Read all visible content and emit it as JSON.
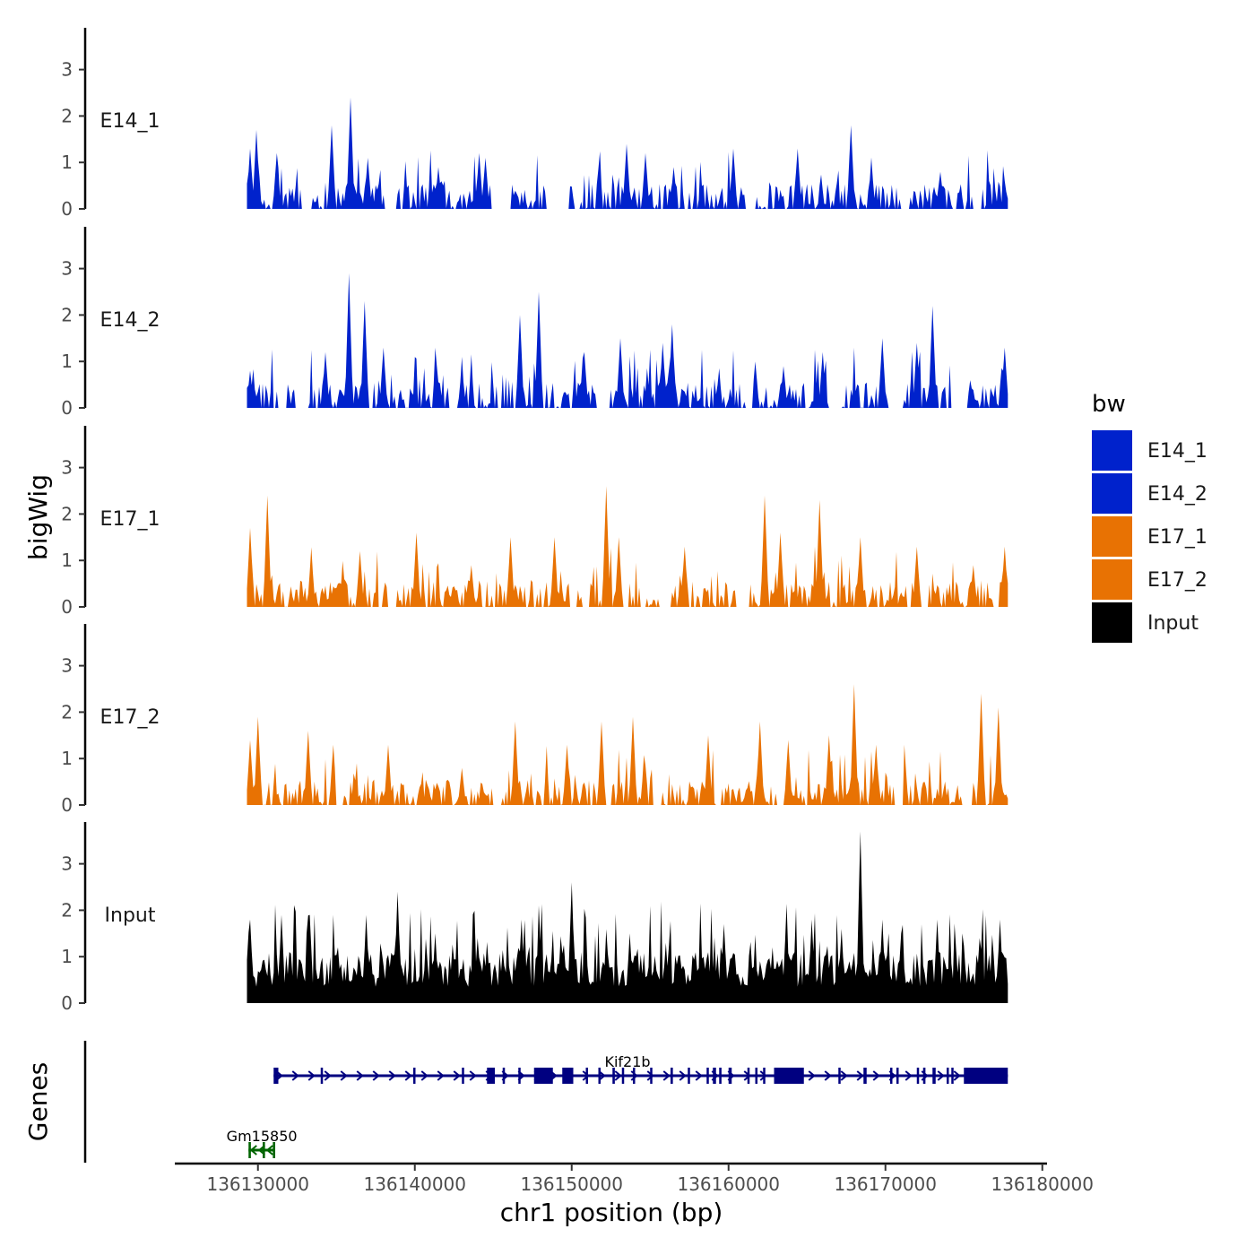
{
  "chart_data": {
    "type": "area",
    "chrom": "chr1",
    "xlabel": "chr1 position (bp)",
    "ylabel": "bigWig",
    "genes_panel_label": "Genes",
    "xlim": [
      136124700,
      136180300
    ],
    "xticks": [
      136130000,
      136140000,
      136150000,
      136160000,
      136170000,
      136180000
    ],
    "xtick_labels": [
      "136130000",
      "136140000",
      "136150000",
      "136160000",
      "136170000",
      "136180000"
    ],
    "ylim": [
      0,
      3.9
    ],
    "yticks": [
      0,
      1,
      2,
      3
    ],
    "ytick_labels": [
      "0",
      "1",
      "2",
      "3"
    ],
    "track_start": 136129300,
    "track_end": 136177800,
    "legend": {
      "title": "bw",
      "entries": [
        {
          "label": "E14_1",
          "color": "#0022cc"
        },
        {
          "label": "E14_2",
          "color": "#0022cc"
        },
        {
          "label": "E17_1",
          "color": "#e87203"
        },
        {
          "label": "E17_2",
          "color": "#e87203"
        },
        {
          "label": "Input",
          "color": "#000000"
        }
      ]
    },
    "tracks": [
      {
        "name": "E14_1",
        "color": "#0022cc",
        "gaps": [
          [
            136132800,
            136133300
          ],
          [
            136138200,
            136138800
          ],
          [
            136145100,
            136146100
          ],
          [
            136148400,
            136149700
          ],
          [
            136161200,
            136161700
          ],
          [
            136171000,
            136171500
          ],
          [
            136175600,
            136176100
          ]
        ],
        "peaks": [
          [
            136129500,
            1.3
          ],
          [
            136129900,
            1.7
          ],
          [
            136131200,
            1.2
          ],
          [
            136134700,
            1.8
          ],
          [
            136135900,
            2.4
          ],
          [
            136137000,
            1.1
          ],
          [
            136141500,
            0.9
          ],
          [
            136144100,
            1.2
          ],
          [
            136144500,
            1.1
          ],
          [
            136153500,
            1.4
          ],
          [
            136154700,
            1.2
          ],
          [
            136156500,
            0.9
          ],
          [
            136160300,
            1.3
          ],
          [
            136164400,
            1.3
          ],
          [
            136167800,
            1.8
          ],
          [
            136169100,
            1.0
          ],
          [
            136173500,
            0.8
          ],
          [
            136177600,
            0.6
          ]
        ]
      },
      {
        "name": "E14_2",
        "color": "#0022cc",
        "gaps": [
          [
            136131300,
            136131800
          ],
          [
            136132700,
            136133100
          ],
          [
            136142200,
            136142600
          ],
          [
            136151800,
            136152400
          ],
          [
            136161100,
            136161500
          ],
          [
            136166400,
            136166900
          ],
          [
            136170300,
            136171100
          ],
          [
            136174200,
            136175200
          ]
        ],
        "peaks": [
          [
            136129500,
            0.8
          ],
          [
            136134300,
            1.2
          ],
          [
            136135800,
            2.9
          ],
          [
            136136800,
            2.3
          ],
          [
            136138000,
            1.3
          ],
          [
            136141400,
            0.9
          ],
          [
            136143000,
            0.9
          ],
          [
            136146700,
            2.0
          ],
          [
            136147900,
            2.5
          ],
          [
            136150800,
            1.2
          ],
          [
            136153100,
            1.5
          ],
          [
            136155800,
            1.4
          ],
          [
            136156400,
            1.8
          ],
          [
            136161700,
            1.0
          ],
          [
            136163500,
            0.9
          ],
          [
            136166000,
            1.2
          ],
          [
            136169800,
            1.5
          ],
          [
            136172000,
            1.4
          ],
          [
            136173000,
            2.2
          ],
          [
            136174800,
            1.0
          ],
          [
            136177600,
            1.3
          ]
        ]
      },
      {
        "name": "E17_1",
        "color": "#e87203",
        "gaps": [
          [
            136138300,
            136138700
          ],
          [
            136149900,
            136150300
          ],
          [
            136155900,
            136156300
          ],
          [
            136160700,
            136161200
          ],
          [
            136172300,
            136172700
          ],
          [
            136176900,
            136177200
          ]
        ],
        "peaks": [
          [
            136129500,
            1.7
          ],
          [
            136130600,
            2.4
          ],
          [
            136133400,
            1.2
          ],
          [
            136136500,
            1.2
          ],
          [
            136140100,
            1.6
          ],
          [
            136143600,
            0.9
          ],
          [
            136146100,
            1.5
          ],
          [
            136148900,
            1.5
          ],
          [
            136152200,
            2.6
          ],
          [
            136153000,
            1.5
          ],
          [
            136157200,
            1.3
          ],
          [
            136162300,
            2.4
          ],
          [
            136163300,
            1.6
          ],
          [
            136165800,
            2.3
          ],
          [
            136168400,
            1.5
          ],
          [
            136172000,
            1.3
          ],
          [
            136175600,
            0.9
          ],
          [
            136177600,
            1.3
          ]
        ]
      },
      {
        "name": "E17_2",
        "color": "#e87203",
        "gaps": [
          [
            136135000,
            136135400
          ],
          [
            136145000,
            136145500
          ],
          [
            136155200,
            136155600
          ],
          [
            136163100,
            136163500
          ],
          [
            136170600,
            136171100
          ],
          [
            136175000,
            136175500
          ]
        ],
        "peaks": [
          [
            136129500,
            1.4
          ],
          [
            136130000,
            1.9
          ],
          [
            136133200,
            1.6
          ],
          [
            136134800,
            1.3
          ],
          [
            136138300,
            1.3
          ],
          [
            136143000,
            0.8
          ],
          [
            136146400,
            1.8
          ],
          [
            136149700,
            1.3
          ],
          [
            136151900,
            1.8
          ],
          [
            136153900,
            1.9
          ],
          [
            136158700,
            1.5
          ],
          [
            136162000,
            1.8
          ],
          [
            136163800,
            1.4
          ],
          [
            136166400,
            1.5
          ],
          [
            136168000,
            2.6
          ],
          [
            136169400,
            1.3
          ],
          [
            136171200,
            1.3
          ],
          [
            136176100,
            2.4
          ],
          [
            136177200,
            2.1
          ]
        ]
      },
      {
        "name": "Input",
        "color": "#000000",
        "gaps": [],
        "peaks": [
          [
            136129500,
            1.8
          ],
          [
            136131500,
            1.9
          ],
          [
            136133300,
            1.9
          ],
          [
            136135100,
            1.2
          ],
          [
            136136900,
            1.9
          ],
          [
            136138900,
            2.4
          ],
          [
            136141300,
            1.5
          ],
          [
            136144000,
            1.4
          ],
          [
            136146800,
            1.8
          ],
          [
            136150000,
            2.6
          ],
          [
            136153700,
            1.5
          ],
          [
            136156000,
            1.3
          ],
          [
            136159700,
            1.7
          ],
          [
            136162800,
            1.2
          ],
          [
            136165300,
            1.8
          ],
          [
            136167200,
            1.6
          ],
          [
            136168400,
            3.7
          ],
          [
            136169800,
            1.8
          ],
          [
            136171000,
            1.5
          ],
          [
            136173300,
            1.8
          ],
          [
            136176000,
            1.4
          ],
          [
            136177300,
            1.8
          ]
        ]
      }
    ],
    "genes": [
      {
        "name": "Kif21b",
        "color": "#000080",
        "strand": "+",
        "start": 136131000,
        "end": 136177800,
        "row": 0,
        "exons": [
          [
            136131000,
            136131300
          ],
          [
            136134000,
            136134100
          ],
          [
            136139900,
            136140000
          ],
          [
            136143000,
            136143050
          ],
          [
            136144600,
            136145100
          ],
          [
            136145600,
            136145700
          ],
          [
            136146600,
            136146700
          ],
          [
            136147600,
            136148800
          ],
          [
            136149400,
            136150100
          ],
          [
            136150900,
            136151000
          ],
          [
            136151700,
            136151800
          ],
          [
            136152600,
            136152750
          ],
          [
            136153200,
            136153300
          ],
          [
            136153900,
            136154000
          ],
          [
            136155000,
            136155100
          ],
          [
            136156300,
            136156450
          ],
          [
            136157400,
            136157500
          ],
          [
            136158600,
            136158700
          ],
          [
            136159000,
            136159200
          ],
          [
            136159400,
            136159550
          ],
          [
            136160000,
            136160200
          ],
          [
            136161200,
            136161300
          ],
          [
            136161700,
            136161800
          ],
          [
            136162200,
            136162300
          ],
          [
            136162900,
            136164800
          ],
          [
            136167000,
            136167100
          ],
          [
            136168600,
            136168800
          ],
          [
            136170300,
            136170400
          ],
          [
            136170700,
            136170800
          ],
          [
            136172000,
            136172100
          ],
          [
            136172400,
            136172550
          ],
          [
            136173000,
            136173200
          ],
          [
            136173900,
            136174000
          ],
          [
            136174200,
            136174300
          ],
          [
            136175000,
            136177800
          ]
        ]
      },
      {
        "name": "Gm15850",
        "color": "#006400",
        "strand": "-",
        "start": 136129400,
        "end": 136131100,
        "row": 1,
        "exons": [
          [
            136129400,
            136129550
          ],
          [
            136130300,
            136130450
          ],
          [
            136130950,
            136131100
          ]
        ]
      }
    ]
  }
}
